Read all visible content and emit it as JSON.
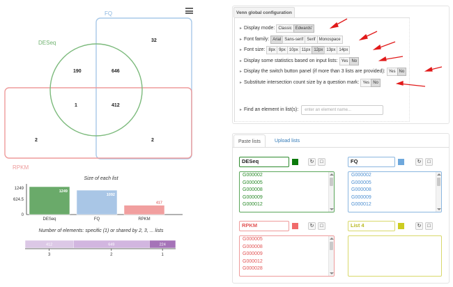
{
  "venn": {
    "sets": [
      {
        "name": "FQ",
        "color": "#7fb1e0"
      },
      {
        "name": "DESeq",
        "color": "#5aa65a"
      },
      {
        "name": "RPKM",
        "color": "#e57c7c"
      }
    ],
    "counts": {
      "fq_only": "32",
      "deseq_fq": "646",
      "deseq_only": "190",
      "all_three": "412",
      "deseq_rpkm": "1",
      "rpkm_only": "2",
      "fq_rpkm": "2"
    }
  },
  "bar_chart": {
    "title": "Size of each list",
    "y_ticks": [
      "1249",
      "624.5",
      "0"
    ],
    "categories": [
      "DESeq",
      "FQ",
      "RPKM"
    ],
    "values": [
      "1249",
      "1092",
      "417"
    ]
  },
  "elements_chart": {
    "title": "Number of elements: specific (1) or shared by 2, 3, ... lists",
    "segments": [
      {
        "label": "412",
        "axis": "3"
      },
      {
        "label": "649",
        "axis": "2"
      },
      {
        "label": "224",
        "axis": "1"
      }
    ]
  },
  "chart_data": [
    {
      "type": "bar",
      "title": "Size of each list",
      "categories": [
        "DESeq",
        "FQ",
        "RPKM"
      ],
      "values": [
        1249,
        1092,
        417
      ],
      "ylim": [
        0,
        1249
      ],
      "colors": [
        "#6aaa6a",
        "#a9c6e6",
        "#f19f9f"
      ]
    },
    {
      "type": "bar",
      "title": "Number of elements: specific (1) or shared by 2, 3, ... lists",
      "categories": [
        "3",
        "2",
        "1"
      ],
      "values": [
        412,
        649,
        224
      ]
    }
  ],
  "config": {
    "tab_title": "Venn global configuration",
    "display_mode_label": "Display mode:",
    "display_mode_options": [
      "Classic",
      "Edwards'"
    ],
    "font_family_label": "Font family:",
    "font_family_options": [
      "Arial",
      "Sans-serif",
      "Serif",
      "Monospace"
    ],
    "font_size_label": "Font size:",
    "font_size_options": [
      "8px",
      "9px",
      "10px",
      "11px",
      "12px",
      "13px",
      "14px"
    ],
    "stats_label": "Display some statistics based on input lists:",
    "switch_label": "Display the switch button panel (if more than 3 lists are provided):",
    "substitute_label": "Substitute intersection count size by a question mark:",
    "yes": "Yes",
    "no": "No",
    "find_label": "Find an element in list(s):",
    "find_placeholder": "enter an element name...",
    "accent_color": "#e11a1a"
  },
  "lists_panel": {
    "tab_paste": "Paste lists",
    "tab_upload": "Upload lists",
    "lists": [
      {
        "name": "DESeq",
        "color": "#0b7a0b",
        "text_color": "#2a8a2a",
        "items": [
          "G000002",
          "G000005",
          "G000008",
          "G000009",
          "G000012"
        ]
      },
      {
        "name": "FQ",
        "color": "#6fa8dc",
        "text_color": "#4d8fd1",
        "items": [
          "G000002",
          "G000005",
          "G000008",
          "G000009",
          "G000012"
        ]
      },
      {
        "name": "RPKM",
        "color": "#f06b6b",
        "text_color": "#e25555",
        "items": [
          "G000005",
          "G000008",
          "G000009",
          "G000012",
          "G000028"
        ]
      },
      {
        "name": "List 4",
        "color": "#cccc22",
        "text_color": "#b8b820",
        "items": []
      }
    ],
    "icons": [
      "refresh-icon",
      "trash-icon"
    ]
  }
}
